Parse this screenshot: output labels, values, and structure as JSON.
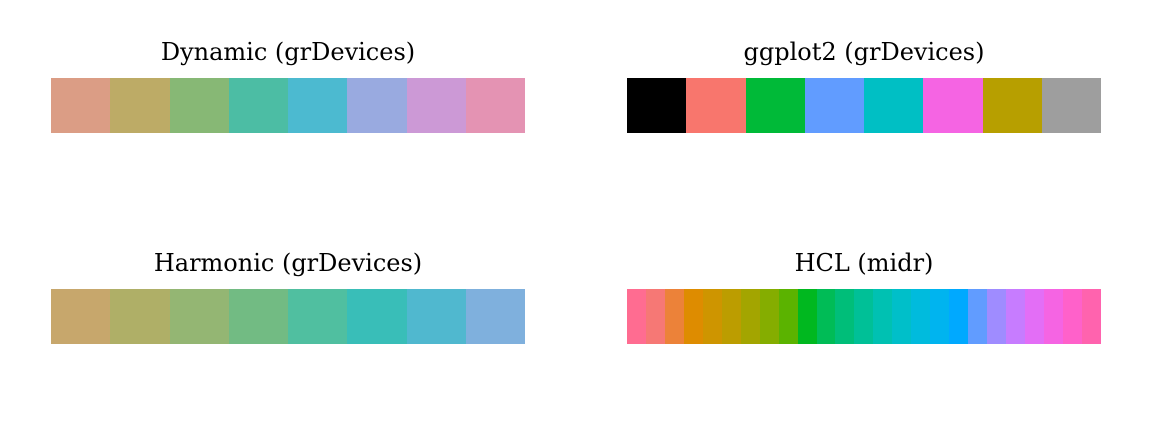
{
  "chart_data": [
    {
      "type": "palette",
      "title": "Dynamic (grDevices)",
      "colors": [
        "#DB9D85",
        "#BDAB66",
        "#87B875",
        "#4CBDA4",
        "#4CBAD0",
        "#99AAE0",
        "#CC99D6",
        "#E493B3"
      ]
    },
    {
      "type": "palette",
      "title": "ggplot2 (grDevices)",
      "colors": [
        "#000000",
        "#F8766D",
        "#00BA38",
        "#619CFF",
        "#00BFC4",
        "#F564E3",
        "#B79F00",
        "#9E9E9E"
      ]
    },
    {
      "type": "palette",
      "title": "Harmonic (grDevices)",
      "colors": [
        "#C7A76C",
        "#AFAF67",
        "#94B673",
        "#72BB83",
        "#50BFA0",
        "#39BEB8",
        "#50B8CF",
        "#7FB0DD"
      ]
    },
    {
      "type": "palette",
      "title": "HCL (midr)",
      "colors": [
        "#FF6C91",
        "#F67875",
        "#EC8239",
        "#DE8C00",
        "#CE9500",
        "#BC9D00",
        "#A3A500",
        "#85AD00",
        "#5BB300",
        "#00B81F",
        "#00BC56",
        "#00BE79",
        "#00C097",
        "#00C1B2",
        "#00BFC9",
        "#00BBDD",
        "#00B4EF",
        "#00A9FF",
        "#619CFF",
        "#9F8CFF",
        "#C77CFF",
        "#E36EF6",
        "#F564E3",
        "#FF61CA",
        "#FF63AE"
      ]
    }
  ]
}
